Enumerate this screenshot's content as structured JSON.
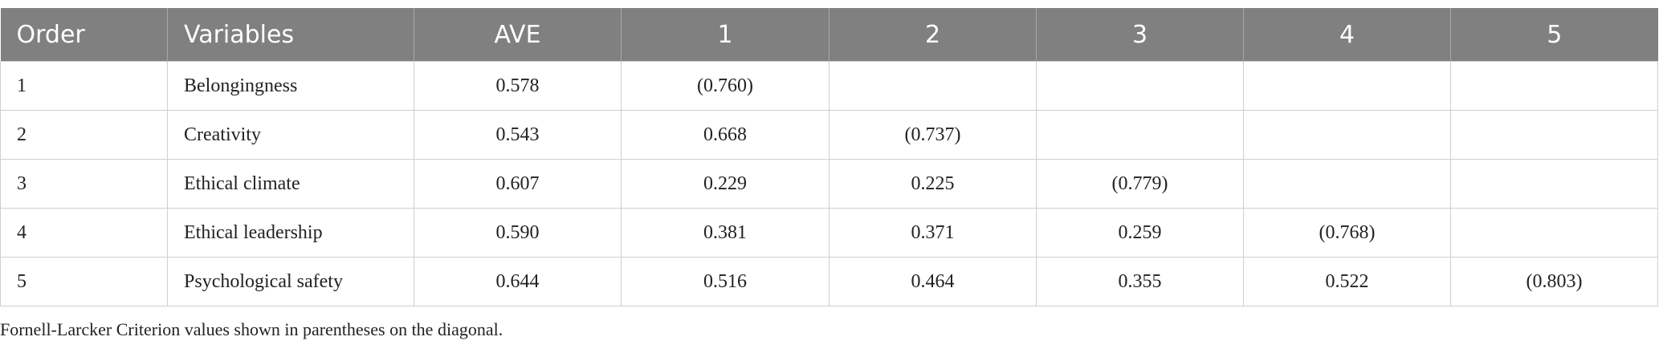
{
  "table": {
    "header": [
      "Order",
      "Variables",
      "AVE",
      "1",
      "2",
      "3",
      "4",
      "5"
    ],
    "rows": [
      [
        "1",
        "Belongingness",
        "0.578",
        "(0.760)"
      ],
      [
        "2",
        "Creativity",
        "0.543",
        "0.668",
        "(0.737)"
      ],
      [
        "3",
        "Ethical climate",
        "0.607",
        "0.229",
        "0.225",
        "(0.779)"
      ],
      [
        "4",
        "Ethical leadership",
        "0.590",
        "0.381",
        "0.371",
        "0.259",
        "(0.768)"
      ],
      [
        "5",
        "Psychological safety",
        "0.644",
        "0.516",
        "0.464",
        "0.355",
        "0.522",
        "(0.803)"
      ]
    ]
  },
  "footnote": "Fornell-Larcker Criterion values shown in parentheses on the diagonal."
}
